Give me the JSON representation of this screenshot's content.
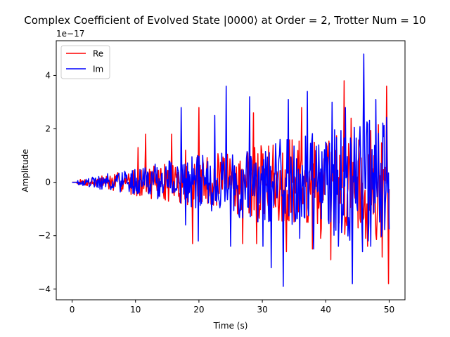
{
  "chart_data": {
    "type": "line",
    "title": "Complex Coefficient of Evolved State |0000⟩ at Order = 2, Trotter Num = 10",
    "xlabel": "Time (s)",
    "ylabel": "Amplitude",
    "offset_label": "1e−17",
    "xlim": [
      -2.5,
      52.5
    ],
    "ylim": [
      -4.4,
      5.3
    ],
    "x_ticks": [
      0,
      10,
      20,
      30,
      40,
      50
    ],
    "x_tick_labels": [
      "0",
      "10",
      "20",
      "30",
      "40",
      "50"
    ],
    "y_ticks": [
      -4,
      -2,
      0,
      2,
      4
    ],
    "y_tick_labels": [
      "−4",
      "−2",
      "0",
      "2",
      "4"
    ],
    "grid": false,
    "legend_position": "upper-left",
    "x_start": 0,
    "x_end": 50,
    "point_count": 501,
    "series": [
      {
        "name": "Re",
        "color": "#ff0000",
        "envelope_start": 0.05,
        "envelope_end": 2.3,
        "seed": 7,
        "peaks": [
          {
            "x": 10.4,
            "y": 1.3
          },
          {
            "x": 11.6,
            "y": 1.8
          },
          {
            "x": 15.7,
            "y": 1.8
          },
          {
            "x": 17.9,
            "y": 1.2
          },
          {
            "x": 19.0,
            "y": -2.3
          },
          {
            "x": 20.0,
            "y": 2.8
          },
          {
            "x": 26.9,
            "y": -2.3
          },
          {
            "x": 28.6,
            "y": 2.6
          },
          {
            "x": 29.1,
            "y": -2.3
          },
          {
            "x": 33.8,
            "y": -2.6
          },
          {
            "x": 36.2,
            "y": 2.8
          },
          {
            "x": 37.9,
            "y": -2.5
          },
          {
            "x": 39.2,
            "y": -2.1
          },
          {
            "x": 40.8,
            "y": -2.9
          },
          {
            "x": 42.9,
            "y": 3.8
          },
          {
            "x": 44.0,
            "y": 2.4
          },
          {
            "x": 46.6,
            "y": -2.4
          },
          {
            "x": 48.9,
            "y": -2.8
          },
          {
            "x": 49.6,
            "y": 3.6
          },
          {
            "x": 49.9,
            "y": -3.8
          }
        ]
      },
      {
        "name": "Im",
        "color": "#0000ff",
        "envelope_start": 0.05,
        "envelope_end": 2.5,
        "seed": 19,
        "peaks": [
          {
            "x": 15.3,
            "y": 0.8
          },
          {
            "x": 17.2,
            "y": 2.8
          },
          {
            "x": 17.9,
            "y": -1.6
          },
          {
            "x": 19.9,
            "y": -2.2
          },
          {
            "x": 22.5,
            "y": 2.5
          },
          {
            "x": 24.3,
            "y": 3.6
          },
          {
            "x": 25.0,
            "y": -2.4
          },
          {
            "x": 28.0,
            "y": 3.2
          },
          {
            "x": 30.1,
            "y": -2.4
          },
          {
            "x": 31.4,
            "y": -3.2
          },
          {
            "x": 33.3,
            "y": -3.9
          },
          {
            "x": 34.1,
            "y": 3.1
          },
          {
            "x": 35.9,
            "y": -2.1
          },
          {
            "x": 37.1,
            "y": 3.4
          },
          {
            "x": 38.1,
            "y": -2.5
          },
          {
            "x": 41.0,
            "y": 3.0
          },
          {
            "x": 42.0,
            "y": -2.4
          },
          {
            "x": 43.1,
            "y": 2.8
          },
          {
            "x": 44.2,
            "y": -3.8
          },
          {
            "x": 45.8,
            "y": -2.6
          },
          {
            "x": 46.0,
            "y": 4.8
          },
          {
            "x": 47.1,
            "y": -2.4
          },
          {
            "x": 47.9,
            "y": 3.1
          },
          {
            "x": 48.9,
            "y": -1.6
          }
        ]
      }
    ]
  }
}
